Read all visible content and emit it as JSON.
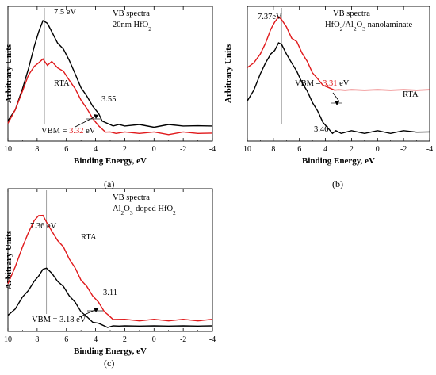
{
  "colors": {
    "asdep": "#000000",
    "rta": "#e0191b",
    "marker": "#888888"
  },
  "chart_data": [
    {
      "type": "line",
      "panel_label": "(a)",
      "xlabel": "Binding Energy, eV",
      "ylabel": "Arbitrary Units",
      "xlim": [
        10,
        -4
      ],
      "xticks": [
        10,
        8,
        6,
        4,
        2,
        0,
        -2,
        -4
      ],
      "text_lines": [
        "VB spectra",
        "20nm HfO",
        "2"
      ],
      "peak_label": "7.5 eV",
      "peak_x": 7.5,
      "series": [
        {
          "name": "",
          "color_key": "asdep",
          "x": [
            10,
            9.5,
            9,
            8.6,
            8.2,
            7.9,
            7.6,
            7.3,
            7.0,
            6.6,
            6.2,
            5.8,
            5.4,
            5.0,
            4.6,
            4.2,
            3.8,
            3.55,
            3.2,
            2.8,
            2.4,
            2.0,
            1.0,
            0,
            -1,
            -2,
            -3,
            -4
          ],
          "y": [
            0.12,
            0.22,
            0.38,
            0.55,
            0.72,
            0.85,
            0.93,
            0.92,
            0.84,
            0.76,
            0.7,
            0.62,
            0.5,
            0.4,
            0.32,
            0.25,
            0.18,
            0.13,
            0.1,
            0.09,
            0.09,
            0.09,
            0.09,
            0.08,
            0.09,
            0.09,
            0.08,
            0.09
          ]
        },
        {
          "name": "RTA",
          "color_key": "rta",
          "x": [
            10,
            9.5,
            9,
            8.6,
            8.2,
            7.9,
            7.6,
            7.3,
            7.0,
            6.6,
            6.2,
            5.8,
            5.4,
            5.0,
            4.6,
            4.2,
            3.8,
            3.32,
            3.0,
            2.6,
            2.0,
            1.0,
            0,
            -1,
            -2,
            -3,
            -4
          ],
          "y": [
            0.1,
            0.22,
            0.36,
            0.5,
            0.56,
            0.6,
            0.62,
            0.58,
            0.6,
            0.56,
            0.52,
            0.46,
            0.38,
            0.3,
            0.22,
            0.15,
            0.08,
            0.04,
            0.03,
            0.03,
            0.03,
            0.03,
            0.03,
            0.02,
            0.03,
            0.03,
            0.02
          ]
        }
      ],
      "annotations": [
        {
          "text": "RTA",
          "color_key": "rta"
        },
        {
          "text": "3.55",
          "color_key": "asdep"
        },
        {
          "text": "VBM = ",
          "color_key": "asdep"
        },
        {
          "text": "3.32",
          "color_key": "rta"
        },
        {
          "text": " eV",
          "color_key": "asdep"
        }
      ]
    },
    {
      "type": "line",
      "panel_label": "(b)",
      "xlabel": "Binding Energy, eV",
      "ylabel": "Arbitrary Units",
      "xlim": [
        10,
        -4
      ],
      "xticks": [
        10,
        8,
        6,
        4,
        2,
        0,
        -2,
        -4
      ],
      "text_lines": [
        "VB spectra",
        "HfO",
        "2",
        "/Al",
        "2",
        "O",
        "3",
        " nanolaminate"
      ],
      "peak_label": "7.37eV",
      "peak_x": 7.37,
      "series": [
        {
          "name": "RTA",
          "color_key": "rta",
          "x": [
            10,
            9.5,
            9,
            8.6,
            8.2,
            7.9,
            7.6,
            7.37,
            7.0,
            6.6,
            6.2,
            5.8,
            5.4,
            5.0,
            4.6,
            4.2,
            3.8,
            3.31,
            3.0,
            2.5,
            2.0,
            1.0,
            0,
            -1,
            -2,
            -3,
            -4
          ],
          "y": [
            0.55,
            0.6,
            0.66,
            0.76,
            0.86,
            0.93,
            0.96,
            0.95,
            0.88,
            0.8,
            0.76,
            0.68,
            0.6,
            0.52,
            0.46,
            0.42,
            0.39,
            0.38,
            0.37,
            0.38,
            0.37,
            0.38,
            0.37,
            0.38,
            0.37,
            0.38,
            0.37
          ]
        },
        {
          "name": "",
          "color_key": "asdep",
          "x": [
            10,
            9.5,
            9,
            8.6,
            8.2,
            7.9,
            7.6,
            7.37,
            7.0,
            6.6,
            6.2,
            5.8,
            5.4,
            5.0,
            4.6,
            4.2,
            3.8,
            3.46,
            3.2,
            2.8,
            2.0,
            1.0,
            0,
            -1,
            -2,
            -3,
            -4
          ],
          "y": [
            0.28,
            0.38,
            0.5,
            0.6,
            0.66,
            0.7,
            0.75,
            0.75,
            0.66,
            0.6,
            0.52,
            0.44,
            0.36,
            0.28,
            0.2,
            0.12,
            0.06,
            0.03,
            0.04,
            0.03,
            0.04,
            0.03,
            0.04,
            0.03,
            0.04,
            0.04,
            0.03
          ]
        }
      ],
      "annotations": [
        {
          "text": "VBM = ",
          "color_key": "asdep"
        },
        {
          "text": "3.31",
          "color_key": "rta"
        },
        {
          "text": " eV",
          "color_key": "asdep"
        },
        {
          "text": "RTA",
          "color_key": "rta"
        },
        {
          "text": "3.46",
          "color_key": "asdep"
        }
      ]
    },
    {
      "type": "line",
      "panel_label": "(c)",
      "xlabel": "Binding Energy, eV",
      "ylabel": "Arbitrary Units",
      "xlim": [
        10,
        -4
      ],
      "xticks": [
        10,
        8,
        6,
        4,
        2,
        0,
        -2,
        -4
      ],
      "text_lines": [
        "VB spectra",
        "Al",
        "2",
        "O",
        "3",
        "-doped HfO",
        "2"
      ],
      "peak_label": "7.36 eV",
      "peak_x": 7.36,
      "series": [
        {
          "name": "RTA",
          "color_key": "rta",
          "x": [
            10,
            9.5,
            9,
            8.6,
            8.2,
            7.9,
            7.6,
            7.36,
            7.0,
            6.6,
            6.2,
            5.8,
            5.4,
            5.0,
            4.6,
            4.2,
            3.8,
            3.4,
            3.11,
            2.8,
            2.0,
            1.0,
            0,
            -1,
            -2,
            -3,
            -4
          ],
          "y": [
            0.32,
            0.46,
            0.6,
            0.72,
            0.8,
            0.85,
            0.84,
            0.8,
            0.72,
            0.66,
            0.6,
            0.52,
            0.44,
            0.36,
            0.3,
            0.24,
            0.18,
            0.12,
            0.08,
            0.06,
            0.05,
            0.05,
            0.05,
            0.05,
            0.05,
            0.05,
            0.05
          ]
        },
        {
          "name": "",
          "color_key": "asdep",
          "x": [
            10,
            9.5,
            9,
            8.6,
            8.2,
            7.9,
            7.6,
            7.36,
            7.0,
            6.6,
            6.2,
            5.8,
            5.4,
            5.0,
            4.6,
            4.2,
            3.8,
            3.18,
            2.8,
            2.4,
            2.0,
            1.0,
            0,
            -1,
            -2,
            -3,
            -4
          ],
          "y": [
            0.08,
            0.14,
            0.22,
            0.28,
            0.34,
            0.39,
            0.43,
            0.45,
            0.4,
            0.35,
            0.3,
            0.24,
            0.18,
            0.12,
            0.07,
            0.04,
            0.02,
            0.0,
            0.0,
            0.01,
            0.0,
            0.01,
            0.0,
            0.01,
            0.0,
            0.01,
            0.0
          ]
        }
      ],
      "annotations": [
        {
          "text": "RTA",
          "color_key": "rta"
        },
        {
          "text": "3.11",
          "color_key": "rta"
        },
        {
          "text": "VBM = 3.18 eV",
          "color_key": "asdep"
        }
      ]
    }
  ]
}
